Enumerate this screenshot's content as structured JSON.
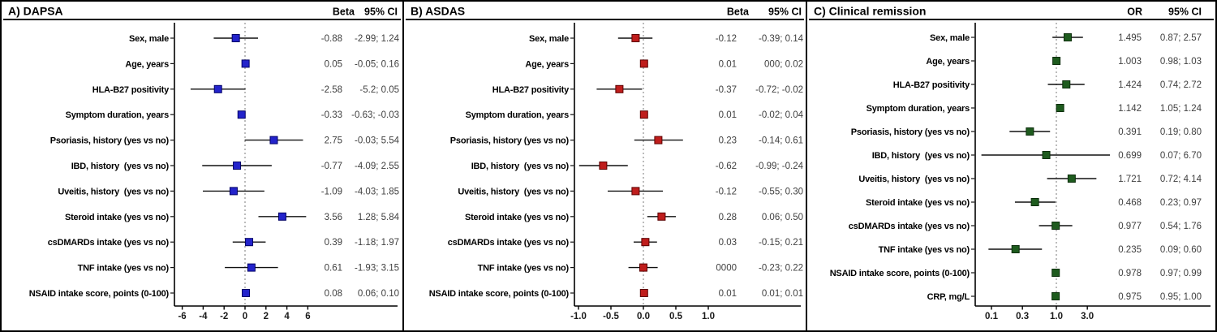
{
  "chart_data": [
    {
      "type": "scatter",
      "subtype": "forest_plot",
      "title": "A) DAPSA",
      "effect_col_header": "Beta",
      "ci_col_header": "95% CI",
      "scale": "linear",
      "ref_line": 0,
      "xlim": [
        -6.8,
        7.5
      ],
      "x_ticks": [
        -6,
        -4,
        -2,
        0,
        2,
        4,
        6
      ],
      "x_tick_labels": [
        "-6",
        "-4",
        "-2",
        "0",
        "2",
        "4",
        "6"
      ],
      "marker_color": "#2323cb",
      "marker_border": "#000066",
      "rows": [
        {
          "label": "Sex, male",
          "est": -0.88,
          "lo": -2.99,
          "hi": 1.24,
          "est_text": "-0.88",
          "ci_text": "-2.99; 1.24"
        },
        {
          "label": "Age, years",
          "est": 0.05,
          "lo": -0.05,
          "hi": 0.16,
          "est_text": "0.05",
          "ci_text": "-0.05; 0.16"
        },
        {
          "label": "HLA-B27 positivity",
          "est": -2.58,
          "lo": -5.2,
          "hi": 0.05,
          "est_text": "-2.58",
          "ci_text": "-5.2; 0.05"
        },
        {
          "label": "Symptom duration, years",
          "est": -0.33,
          "lo": -0.63,
          "hi": -0.03,
          "est_text": "-0.33",
          "ci_text": "-0.63; -0.03"
        },
        {
          "label": "Psoriasis, history (yes vs no)",
          "est": 2.75,
          "lo": -0.03,
          "hi": 5.54,
          "est_text": "2.75",
          "ci_text": "-0.03; 5.54"
        },
        {
          "label": "IBD, history  (yes vs no)",
          "est": -0.77,
          "lo": -4.09,
          "hi": 2.55,
          "est_text": "-0.77",
          "ci_text": "-4.09; 2.55"
        },
        {
          "label": "Uveitis, history  (yes vs no)",
          "est": -1.09,
          "lo": -4.03,
          "hi": 1.85,
          "est_text": "-1.09",
          "ci_text": "-4.03; 1.85"
        },
        {
          "label": "Steroid intake (yes vs no)",
          "est": 3.56,
          "lo": 1.28,
          "hi": 5.84,
          "est_text": "3.56",
          "ci_text": "1.28; 5.84"
        },
        {
          "label": "csDMARDs intake (yes vs no)",
          "est": 0.39,
          "lo": -1.18,
          "hi": 1.97,
          "est_text": "0.39",
          "ci_text": "-1.18; 1.97"
        },
        {
          "label": "TNF intake (yes vs no)",
          "est": 0.61,
          "lo": -1.93,
          "hi": 3.15,
          "est_text": "0.61",
          "ci_text": "-1.93; 3.15"
        },
        {
          "label": "NSAID intake score, points (0-100)",
          "est": 0.08,
          "lo": 0.06,
          "hi": 0.1,
          "est_text": "0.08",
          "ci_text": "0.06; 0.10"
        }
      ]
    },
    {
      "type": "scatter",
      "subtype": "forest_plot",
      "title": "B) ASDAS",
      "effect_col_header": "Beta",
      "ci_col_header": "95% CI",
      "scale": "linear",
      "ref_line": 0,
      "xlim": [
        -1.15,
        1.3
      ],
      "x_ticks": [
        -1.0,
        -0.5,
        0.0,
        0.5,
        1.0
      ],
      "x_tick_labels": [
        "-1.0",
        "-0.5",
        "0.0",
        "0.5",
        "1.0"
      ],
      "marker_color": "#bf1d1c",
      "marker_border": "#5c0000",
      "rows": [
        {
          "label": "Sex, male",
          "est": -0.12,
          "lo": -0.39,
          "hi": 0.14,
          "est_text": "-0.12",
          "ci_text": "-0.39; 0.14"
        },
        {
          "label": "Age, years",
          "est": 0.01,
          "lo": 0.0,
          "hi": 0.02,
          "est_text": "0.01",
          "ci_text": "000; 0.02"
        },
        {
          "label": "HLA-B27 positivity",
          "est": -0.37,
          "lo": -0.72,
          "hi": -0.02,
          "est_text": "-0.37",
          "ci_text": "-0.72; -0.02"
        },
        {
          "label": "Symptom duration, years",
          "est": 0.01,
          "lo": -0.02,
          "hi": 0.04,
          "est_text": "0.01",
          "ci_text": "-0.02; 0.04"
        },
        {
          "label": "Psoriasis, history (yes vs no)",
          "est": 0.23,
          "lo": -0.14,
          "hi": 0.61,
          "est_text": "0.23",
          "ci_text": "-0.14; 0.61"
        },
        {
          "label": "IBD, history  (yes vs no)",
          "est": -0.62,
          "lo": -0.99,
          "hi": -0.24,
          "est_text": "-0.62",
          "ci_text": "-0.99; -0.24"
        },
        {
          "label": "Uveitis, history  (yes vs no)",
          "est": -0.12,
          "lo": -0.55,
          "hi": 0.3,
          "est_text": "-0.12",
          "ci_text": "-0.55; 0.30"
        },
        {
          "label": "Steroid intake (yes vs no)",
          "est": 0.28,
          "lo": 0.06,
          "hi": 0.5,
          "est_text": "0.28",
          "ci_text": "0.06; 0.50"
        },
        {
          "label": "csDMARDs intake (yes vs no)",
          "est": 0.03,
          "lo": -0.15,
          "hi": 0.21,
          "est_text": "0.03",
          "ci_text": "-0.15; 0.21"
        },
        {
          "label": "TNF intake (yes vs no)",
          "est": 0.0,
          "lo": -0.23,
          "hi": 0.22,
          "est_text": "0000",
          "ci_text": "-0.23; 0.22"
        },
        {
          "label": "NSAID intake score, points (0-100)",
          "est": 0.01,
          "lo": 0.01,
          "hi": 0.01,
          "est_text": "0.01",
          "ci_text": "0.01; 0.01"
        }
      ]
    },
    {
      "type": "scatter",
      "subtype": "forest_plot",
      "title": "C) Clinical remission",
      "effect_col_header": "OR",
      "ci_col_header": "95% CI",
      "scale": "log",
      "ref_line": 1.0,
      "xlim": [
        0.055,
        9.0
      ],
      "x_ticks": [
        0.1,
        0.3,
        1.0,
        3.0
      ],
      "x_tick_labels": [
        "0.1",
        "0.3",
        "1.0",
        "3.0"
      ],
      "marker_color": "#1e5b1e",
      "marker_border": "#0c2e0c",
      "rows": [
        {
          "label": "Sex, male",
          "est": 1.495,
          "lo": 0.87,
          "hi": 2.57,
          "est_text": "1.495",
          "ci_text": "0.87; 2.57"
        },
        {
          "label": "Age, years",
          "est": 1.003,
          "lo": 0.98,
          "hi": 1.03,
          "est_text": "1.003",
          "ci_text": "0.98; 1.03"
        },
        {
          "label": "HLA-B27 positivity",
          "est": 1.424,
          "lo": 0.74,
          "hi": 2.72,
          "est_text": "1.424",
          "ci_text": "0.74; 2.72"
        },
        {
          "label": "Symptom duration, years",
          "est": 1.142,
          "lo": 1.05,
          "hi": 1.24,
          "est_text": "1.142",
          "ci_text": "1.05; 1.24"
        },
        {
          "label": "Psoriasis, history (yes vs no)",
          "est": 0.391,
          "lo": 0.19,
          "hi": 0.8,
          "est_text": "0.391",
          "ci_text": "0.19; 0.80"
        },
        {
          "label": "IBD, history  (yes vs no)",
          "est": 0.699,
          "lo": 0.07,
          "hi": 6.7,
          "est_text": "0.699",
          "ci_text": "0.07; 6.70"
        },
        {
          "label": "Uveitis, history  (yes vs no)",
          "est": 1.721,
          "lo": 0.72,
          "hi": 4.14,
          "est_text": "1.721",
          "ci_text": "0.72; 4.14"
        },
        {
          "label": "Steroid intake (yes vs no)",
          "est": 0.468,
          "lo": 0.23,
          "hi": 0.97,
          "est_text": "0.468",
          "ci_text": "0.23; 0.97"
        },
        {
          "label": "csDMARDs intake (yes vs no)",
          "est": 0.977,
          "lo": 0.54,
          "hi": 1.76,
          "est_text": "0.977",
          "ci_text": "0.54; 1.76"
        },
        {
          "label": "TNF intake (yes vs no)",
          "est": 0.235,
          "lo": 0.09,
          "hi": 0.6,
          "est_text": "0.235",
          "ci_text": "0.09; 0.60"
        },
        {
          "label": "NSAID intake score, points (0-100)",
          "est": 0.978,
          "lo": 0.97,
          "hi": 0.99,
          "est_text": "0.978",
          "ci_text": "0.97; 0.99"
        },
        {
          "label": "CRP, mg/L",
          "est": 0.975,
          "lo": 0.95,
          "hi": 1.0,
          "est_text": "0.975",
          "ci_text": "0.95; 1.00"
        }
      ]
    }
  ]
}
